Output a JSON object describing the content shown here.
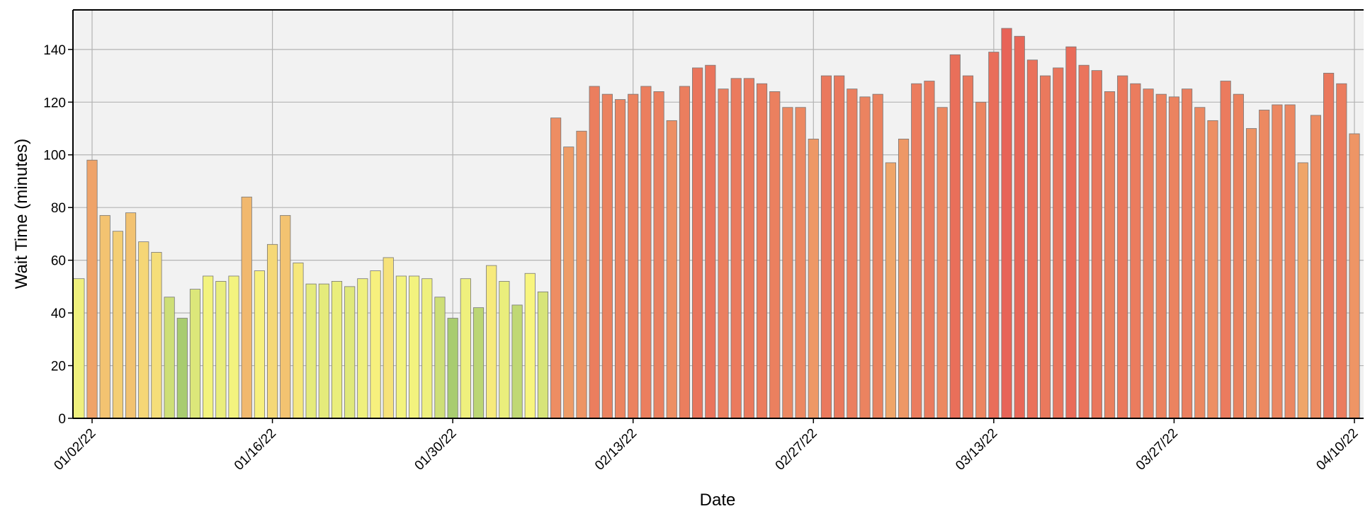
{
  "chart_data": {
    "type": "bar",
    "title": "",
    "xlabel": "Date",
    "ylabel": "Wait Time (minutes)",
    "ylim": [
      0,
      155
    ],
    "y_ticks": [
      0,
      20,
      40,
      60,
      80,
      100,
      120,
      140
    ],
    "x_tick_labels": [
      "01/02/22",
      "01/16/22",
      "01/30/22",
      "02/13/22",
      "02/27/22",
      "03/13/22",
      "03/27/22",
      "04/10/22"
    ],
    "grid": true,
    "colors": {
      "plot_background": "#f2f2f2",
      "low": "#a8cc70",
      "mid": "#f8f57f",
      "high": "#e86357"
    },
    "categories": [
      "01/02/22",
      "01/03/22",
      "01/04/22",
      "01/05/22",
      "01/06/22",
      "01/07/22",
      "01/08/22",
      "01/09/22",
      "01/10/22",
      "01/11/22",
      "01/12/22",
      "01/13/22",
      "01/14/22",
      "01/15/22",
      "01/16/22",
      "01/17/22",
      "01/18/22",
      "01/19/22",
      "01/20/22",
      "01/21/22",
      "01/22/22",
      "01/23/22",
      "01/24/22",
      "01/25/22",
      "01/26/22",
      "01/27/22",
      "01/28/22",
      "01/29/22",
      "01/30/22",
      "01/31/22",
      "02/01/22",
      "02/02/22",
      "02/03/22",
      "02/04/22",
      "02/05/22",
      "02/06/22",
      "02/07/22",
      "02/08/22",
      "02/09/22",
      "02/10/22",
      "02/11/22",
      "02/12/22",
      "02/13/22",
      "02/14/22",
      "02/15/22",
      "02/16/22",
      "02/17/22",
      "02/18/22",
      "02/19/22",
      "02/20/22",
      "02/21/22",
      "02/22/22",
      "02/23/22",
      "02/24/22",
      "02/25/22",
      "02/26/22",
      "02/27/22",
      "02/28/22",
      "03/01/22",
      "03/02/22",
      "03/03/22",
      "03/04/22",
      "03/05/22",
      "03/06/22",
      "03/07/22",
      "03/08/22",
      "03/09/22",
      "03/10/22",
      "03/11/22",
      "03/12/22",
      "03/13/22",
      "03/14/22",
      "03/15/22",
      "03/16/22",
      "03/17/22",
      "03/18/22",
      "03/19/22",
      "03/20/22",
      "03/21/22",
      "03/22/22",
      "03/23/22",
      "03/24/22",
      "03/25/22",
      "03/26/22",
      "03/27/22",
      "03/28/22",
      "03/29/22",
      "03/30/22",
      "03/31/22",
      "04/01/22",
      "04/02/22",
      "04/03/22",
      "04/04/22",
      "04/05/22",
      "04/06/22",
      "04/07/22",
      "04/08/22",
      "04/09/22",
      "04/10/22"
    ],
    "values": [
      98,
      77,
      71,
      78,
      67,
      63,
      46,
      38,
      49,
      54,
      52,
      54,
      84,
      56,
      66,
      77,
      59,
      51,
      51,
      52,
      50,
      53,
      56,
      61,
      54,
      54,
      53,
      46,
      38,
      53,
      42,
      58,
      52,
      43,
      55,
      48,
      114,
      103,
      109,
      126,
      123,
      121,
      123,
      126,
      124,
      113,
      126,
      133,
      134,
      125,
      129,
      129,
      127,
      124,
      118,
      118,
      106,
      130,
      130,
      125,
      122,
      123,
      97,
      106,
      127,
      128,
      118,
      138,
      130,
      120,
      139,
      148,
      145,
      136,
      130,
      133,
      141,
      134,
      132,
      124,
      130,
      127,
      125,
      123,
      122,
      125,
      118,
      113,
      128,
      123,
      110,
      117,
      119,
      119,
      97,
      115,
      131,
      127,
      108
    ],
    "leading_partial_bar_value": 53
  }
}
